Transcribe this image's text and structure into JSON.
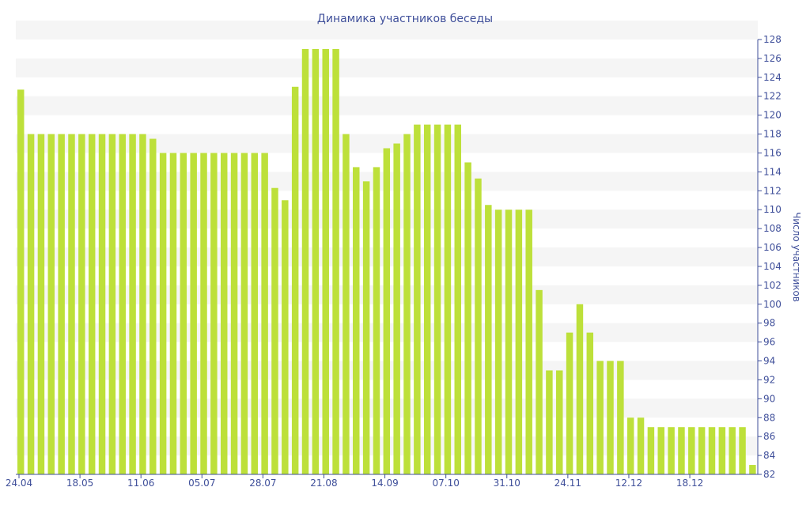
{
  "chart_data": {
    "type": "bar",
    "title": "Динамика участников беседы",
    "xlabel": "",
    "ylabel": "Число участников",
    "ylim": [
      82,
      128
    ],
    "y_ticks": [
      82,
      84,
      86,
      88,
      90,
      92,
      94,
      96,
      98,
      100,
      102,
      104,
      106,
      108,
      110,
      112,
      114,
      116,
      118,
      120,
      122,
      124,
      126,
      128
    ],
    "x_tick_labels": [
      "24.04",
      "18.05",
      "11.06",
      "05.07",
      "28.07",
      "21.08",
      "14.09",
      "07.10",
      "31.10",
      "24.11",
      "12.12",
      "18.12"
    ],
    "x_tick_indices": [
      0,
      6,
      12,
      18,
      24,
      30,
      36,
      42,
      48,
      54,
      60,
      66
    ],
    "grid": true,
    "bar_color": "#bde03a",
    "values": [
      122.7,
      118,
      118,
      118,
      118,
      118,
      118,
      118,
      118,
      118,
      118,
      118,
      118,
      117.5,
      116,
      116,
      116,
      116,
      116,
      116,
      116,
      116,
      116,
      116,
      116,
      112.3,
      111,
      123,
      127,
      127,
      127,
      127,
      118,
      114.5,
      113,
      114.5,
      116.5,
      117,
      118,
      119,
      119,
      119,
      119,
      119,
      115,
      113.3,
      110.5,
      110,
      110,
      110,
      110,
      101.5,
      93,
      93,
      97,
      100,
      97,
      94,
      94,
      94,
      88,
      88,
      87,
      87,
      87,
      87,
      87,
      87,
      87,
      87,
      87,
      87,
      83
    ]
  }
}
